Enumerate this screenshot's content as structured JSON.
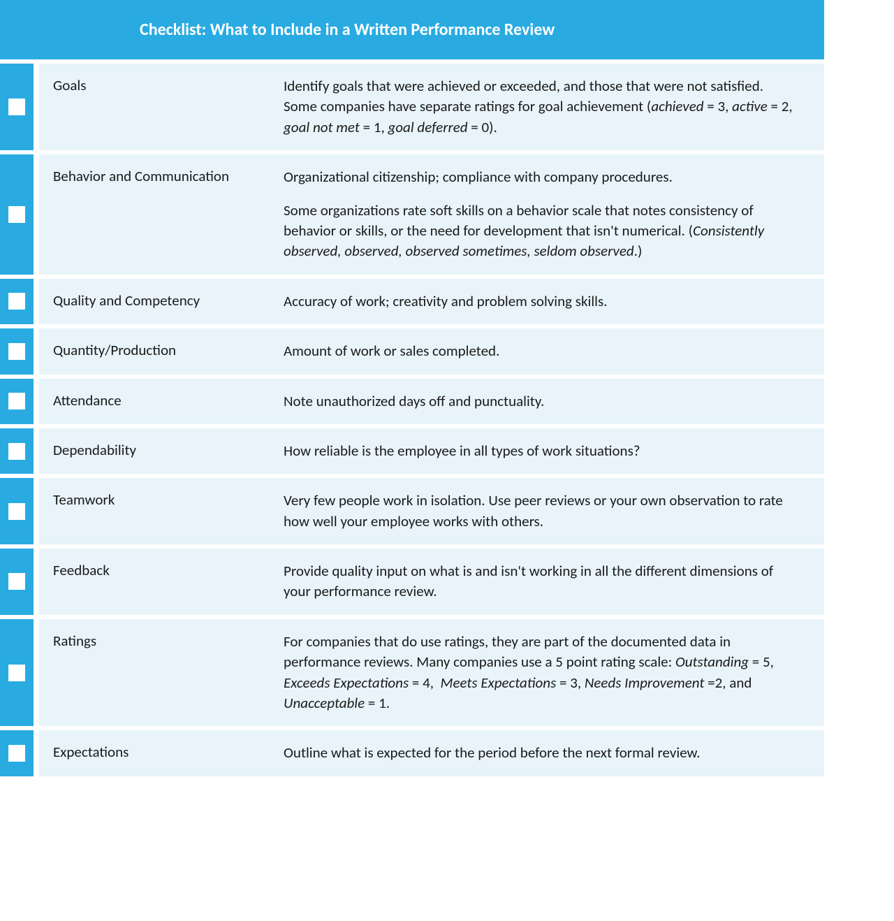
{
  "colors": {
    "accent": "#29abe2",
    "row_bg": "#e8f4fa",
    "checkbox_bg": "#ffffff",
    "text": "#1a1a1a",
    "header_text": "#ffffff"
  },
  "typography": {
    "header_fontsize": 24,
    "body_fontsize": 21,
    "font_family": "Calibri"
  },
  "layout": {
    "container_width": 1180,
    "checkbox_col_width": 48,
    "label_col_width": 340,
    "row_gap": 6
  },
  "header": {
    "title": "Checklist: What to Include in a Written Performance Review"
  },
  "items": [
    {
      "label": "Goals",
      "desc_html": "<p class='tight'>Identify goals that were achieved or exceeded, and those that were not satisfied.</p><p class='tight'>Some companies have separate ratings for goal achievement (<em>achieved</em> = 3, <em>active</em> = 2, <em>goal not met</em> = 1, <em>goal deferred</em> = 0).</p>"
    },
    {
      "label": "Behavior and Communication",
      "desc_html": "<p>Organizational citizenship; compliance with company procedures.</p><p>Some organizations rate soft skills on a behavior scale that notes consistency of behavior or skills, or the need for development that isn't numerical. (<em>Consistently observed, observed, observed sometimes, seldom observed</em>.)</p>"
    },
    {
      "label": "Quality and Competency",
      "desc_html": "<p>Accuracy of work; creativity and problem solving skills.</p>"
    },
    {
      "label": "Quantity/Production",
      "desc_html": "<p>Amount of work or sales completed.</p>"
    },
    {
      "label": "Attendance",
      "desc_html": "<p>Note unauthorized days off and punctuality.</p>"
    },
    {
      "label": "Dependability",
      "desc_html": "<p>How reliable is the employee in all types of work situations?</p>"
    },
    {
      "label": "Teamwork",
      "desc_html": "<p>Very few people work in isolation. Use peer reviews or your own observation to rate how well your employee works with others.</p>"
    },
    {
      "label": "Feedback",
      "desc_html": "<p>Provide quality input on what is and isn't working in all the different dimensions of your performance review.</p>"
    },
    {
      "label": "Ratings",
      "desc_html": "<p>For companies that do use ratings, they are part of the documented data in performance reviews. Many companies use a 5 point rating scale: <em>Outstanding</em> = 5, <em>Exceeds Expectations</em> = 4,&nbsp; <em>Meets Expectations</em> = 3, <em>Needs Improvement</em> =2, and <em>Unacceptable</em> = 1.</p>"
    },
    {
      "label": "Expectations",
      "desc_html": "<p>Outline what is expected for the period before the next formal review.</p>"
    }
  ]
}
